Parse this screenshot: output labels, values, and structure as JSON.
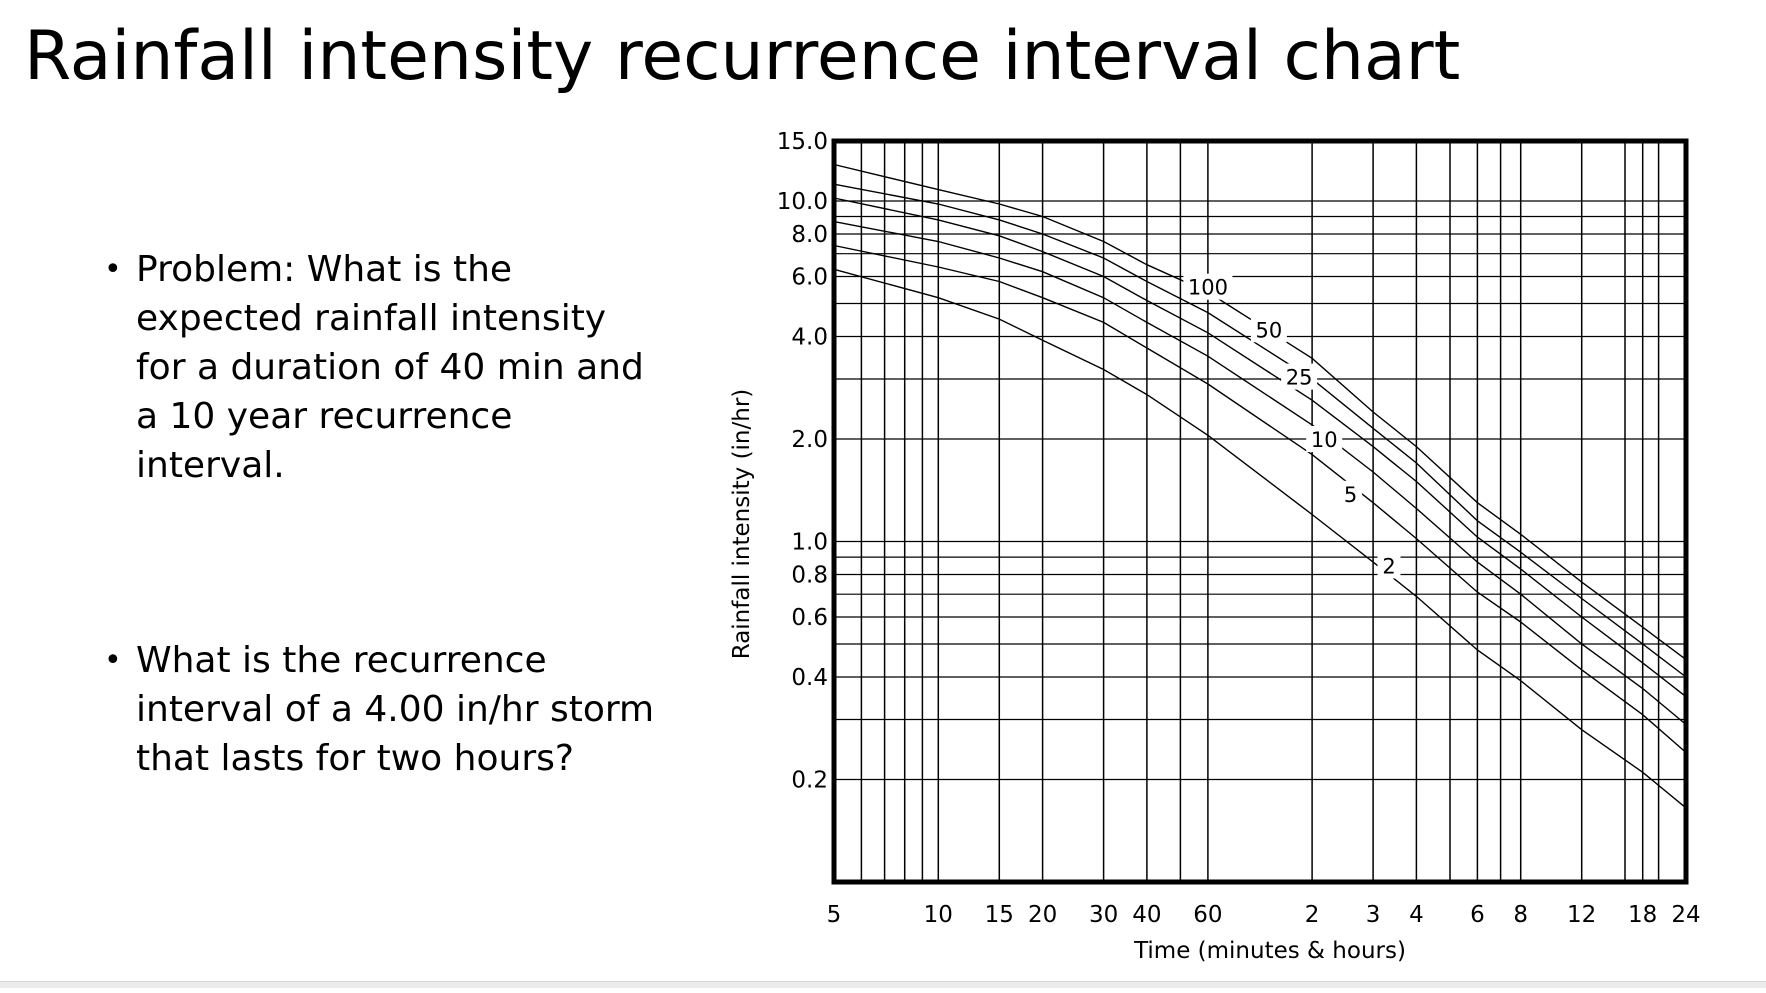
{
  "slide": {
    "title": "Rainfall intensity recurrence interval chart",
    "bullets": [
      "Problem: What is the expected rainfall intensity for a duration of 40 min and a 10 year recurrence interval.",
      "What is the recurrence interval of a 4.00 in/hr storm that lasts for  two hours?"
    ]
  },
  "chart_data": {
    "type": "line",
    "xlabel": "Time (minutes & hours)",
    "ylabel": "Rainfall intensity (in/hr)",
    "x_scale": "log",
    "y_scale": "log",
    "x_unit": "minutes",
    "xlim": [
      5,
      1440
    ],
    "ylim": [
      0.1,
      15.0
    ],
    "grid": true,
    "x_ticks": [
      {
        "value": 5,
        "label": "5"
      },
      {
        "value": 10,
        "label": "10"
      },
      {
        "value": 15,
        "label": "15"
      },
      {
        "value": 20,
        "label": "20"
      },
      {
        "value": 30,
        "label": "30"
      },
      {
        "value": 40,
        "label": "40"
      },
      {
        "value": 60,
        "label": "60"
      },
      {
        "value": 120,
        "label": "2"
      },
      {
        "value": 180,
        "label": "3"
      },
      {
        "value": 240,
        "label": "4"
      },
      {
        "value": 360,
        "label": "6"
      },
      {
        "value": 480,
        "label": "8"
      },
      {
        "value": 720,
        "label": "12"
      },
      {
        "value": 1080,
        "label": "18"
      },
      {
        "value": 1440,
        "label": "24"
      }
    ],
    "y_ticks": [
      {
        "value": 15.0,
        "label": "15.0"
      },
      {
        "value": 10.0,
        "label": "10.0"
      },
      {
        "value": 8.0,
        "label": "8.0"
      },
      {
        "value": 6.0,
        "label": "6.0"
      },
      {
        "value": 4.0,
        "label": "4.0"
      },
      {
        "value": 2.0,
        "label": "2.0"
      },
      {
        "value": 1.0,
        "label": "1.0"
      },
      {
        "value": 0.8,
        "label": "0.8"
      },
      {
        "value": 0.6,
        "label": "0.6"
      },
      {
        "value": 0.4,
        "label": "0.4"
      },
      {
        "value": 0.2,
        "label": "0.2"
      }
    ],
    "x_grid_values": [
      5,
      6,
      7,
      8,
      9,
      10,
      15,
      20,
      30,
      40,
      50,
      60,
      120,
      180,
      240,
      300,
      360,
      420,
      480,
      720,
      960,
      1080,
      1200,
      1440
    ],
    "y_grid_values": [
      0.2,
      0.3,
      0.4,
      0.5,
      0.6,
      0.7,
      0.8,
      0.9,
      1.0,
      2.0,
      3.0,
      4.0,
      5.0,
      6.0,
      7.0,
      8.0,
      9.0,
      10.0
    ],
    "series": [
      {
        "name": "100",
        "label_at": {
          "x": 60,
          "y": 5.6
        },
        "points": [
          [
            5,
            12.8
          ],
          [
            10,
            10.8
          ],
          [
            15,
            9.8
          ],
          [
            20,
            9.0
          ],
          [
            30,
            7.6
          ],
          [
            40,
            6.5
          ],
          [
            60,
            5.4
          ],
          [
            120,
            3.45
          ],
          [
            180,
            2.4
          ],
          [
            240,
            1.9
          ],
          [
            360,
            1.3
          ],
          [
            480,
            1.05
          ],
          [
            720,
            0.76
          ],
          [
            1080,
            0.56
          ],
          [
            1440,
            0.45
          ]
        ]
      },
      {
        "name": "50",
        "label_at": {
          "x": 90,
          "y": 4.2
        },
        "points": [
          [
            5,
            11.2
          ],
          [
            10,
            9.8
          ],
          [
            15,
            8.8
          ],
          [
            20,
            8.0
          ],
          [
            30,
            6.8
          ],
          [
            40,
            5.8
          ],
          [
            60,
            4.7
          ],
          [
            120,
            3.0
          ],
          [
            180,
            2.15
          ],
          [
            240,
            1.7
          ],
          [
            360,
            1.15
          ],
          [
            480,
            0.93
          ],
          [
            720,
            0.68
          ],
          [
            1080,
            0.5
          ],
          [
            1440,
            0.4
          ]
        ]
      },
      {
        "name": "25",
        "label_at": {
          "x": 110,
          "y": 3.05
        },
        "points": [
          [
            5,
            10.2
          ],
          [
            10,
            8.8
          ],
          [
            15,
            7.9
          ],
          [
            20,
            7.1
          ],
          [
            30,
            6.0
          ],
          [
            40,
            5.1
          ],
          [
            60,
            4.1
          ],
          [
            120,
            2.6
          ],
          [
            180,
            1.9
          ],
          [
            240,
            1.5
          ],
          [
            360,
            1.03
          ],
          [
            480,
            0.83
          ],
          [
            720,
            0.6
          ],
          [
            1080,
            0.44
          ],
          [
            1440,
            0.35
          ]
        ]
      },
      {
        "name": "10",
        "label_at": {
          "x": 130,
          "y": 2.0
        },
        "points": [
          [
            5,
            8.7
          ],
          [
            10,
            7.6
          ],
          [
            15,
            6.8
          ],
          [
            20,
            6.2
          ],
          [
            30,
            5.2
          ],
          [
            40,
            4.4
          ],
          [
            60,
            3.5
          ],
          [
            120,
            2.2
          ],
          [
            180,
            1.6
          ],
          [
            240,
            1.25
          ],
          [
            360,
            0.87
          ],
          [
            480,
            0.7
          ],
          [
            720,
            0.5
          ],
          [
            1080,
            0.37
          ],
          [
            1440,
            0.29
          ]
        ]
      },
      {
        "name": "5",
        "label_at": {
          "x": 155,
          "y": 1.38
        },
        "points": [
          [
            5,
            7.4
          ],
          [
            10,
            6.4
          ],
          [
            15,
            5.8
          ],
          [
            20,
            5.2
          ],
          [
            30,
            4.4
          ],
          [
            40,
            3.7
          ],
          [
            60,
            2.9
          ],
          [
            120,
            1.8
          ],
          [
            180,
            1.3
          ],
          [
            240,
            1.02
          ],
          [
            360,
            0.71
          ],
          [
            480,
            0.58
          ],
          [
            720,
            0.42
          ],
          [
            1080,
            0.31
          ],
          [
            1440,
            0.24
          ]
        ]
      },
      {
        "name": "2",
        "label_at": {
          "x": 200,
          "y": 0.85
        },
        "points": [
          [
            5,
            6.3
          ],
          [
            10,
            5.2
          ],
          [
            15,
            4.5
          ],
          [
            20,
            3.9
          ],
          [
            30,
            3.2
          ],
          [
            40,
            2.7
          ],
          [
            60,
            2.05
          ],
          [
            120,
            1.2
          ],
          [
            180,
            0.87
          ],
          [
            240,
            0.69
          ],
          [
            360,
            0.48
          ],
          [
            480,
            0.39
          ],
          [
            720,
            0.28
          ],
          [
            1080,
            0.21
          ],
          [
            1440,
            0.165
          ]
        ]
      }
    ]
  }
}
